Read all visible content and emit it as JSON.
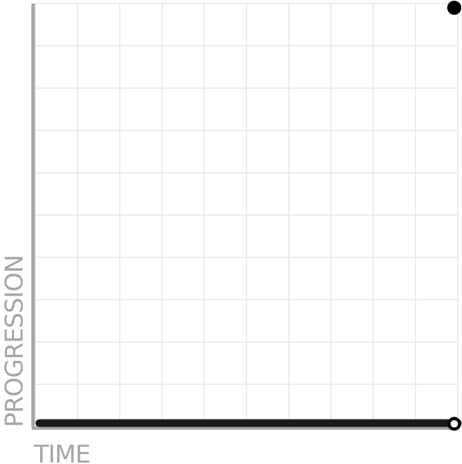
{
  "chart_data": {
    "type": "line",
    "title": "",
    "xlabel": "TIME",
    "ylabel": "PROGRESSION",
    "xlim": [
      0,
      10
    ],
    "ylim": [
      0,
      10
    ],
    "grid": true,
    "series": [
      {
        "values": [
          [
            0,
            0
          ],
          [
            10,
            0
          ]
        ]
      }
    ],
    "points": [
      {
        "x": 10,
        "y": 10,
        "style": "filled"
      },
      {
        "x": 10,
        "y": 0,
        "style": "open"
      }
    ],
    "colors": {
      "axis": "#a6a6a6",
      "grid": "#e6e6e6",
      "series": "#1a1a1a",
      "point": "#000000"
    }
  }
}
